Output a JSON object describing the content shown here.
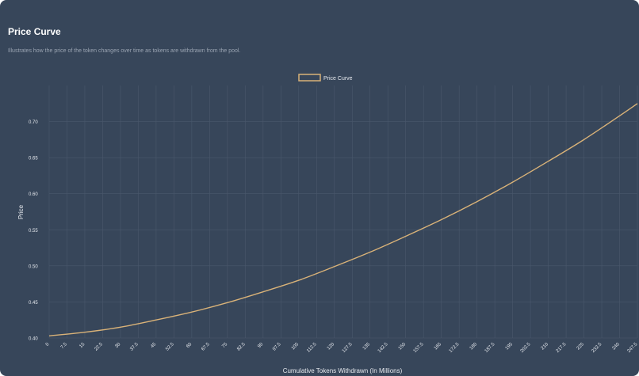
{
  "card": {
    "title": "Price Curve",
    "subtitle": "Illustrates how the price of the token changes over time as tokens are withdrawn from the pool."
  },
  "colors": {
    "background": "#37465a",
    "line": "#d9b278",
    "grid": "#4a586c",
    "text": "#e6e9ee"
  },
  "chart_data": {
    "type": "line",
    "title": "",
    "xlabel": "Cumulative Tokens Withdrawn (In Millions)",
    "ylabel": "Price",
    "legend": {
      "position": "top-center",
      "entries": [
        "Price Curve"
      ]
    },
    "grid": true,
    "xlim": [
      0,
      247.5
    ],
    "ylim": [
      0.4,
      0.75
    ],
    "x_ticks": [
      "0",
      "7.5",
      "15",
      "22.5",
      "30",
      "37.5",
      "45",
      "52.5",
      "60",
      "67.5",
      "75",
      "82.5",
      "90",
      "97.5",
      "105",
      "112.5",
      "120",
      "127.5",
      "135",
      "142.5",
      "150",
      "157.5",
      "165",
      "172.5",
      "180",
      "187.5",
      "195",
      "202.5",
      "210",
      "217.5",
      "225",
      "232.5",
      "240",
      "247.5"
    ],
    "y_ticks": [
      "0.40",
      "0.45",
      "0.50",
      "0.55",
      "0.60",
      "0.65",
      "0.70"
    ],
    "series": [
      {
        "name": "Price Curve",
        "x": [
          0,
          15,
          30,
          45,
          60,
          75,
          90,
          105,
          120,
          135,
          150,
          165,
          180,
          195,
          210,
          225,
          240,
          247.5
        ],
        "y": [
          0.403,
          0.408,
          0.415,
          0.425,
          0.436,
          0.449,
          0.464,
          0.48,
          0.499,
          0.519,
          0.541,
          0.564,
          0.589,
          0.616,
          0.645,
          0.675,
          0.708,
          0.725
        ]
      }
    ]
  }
}
